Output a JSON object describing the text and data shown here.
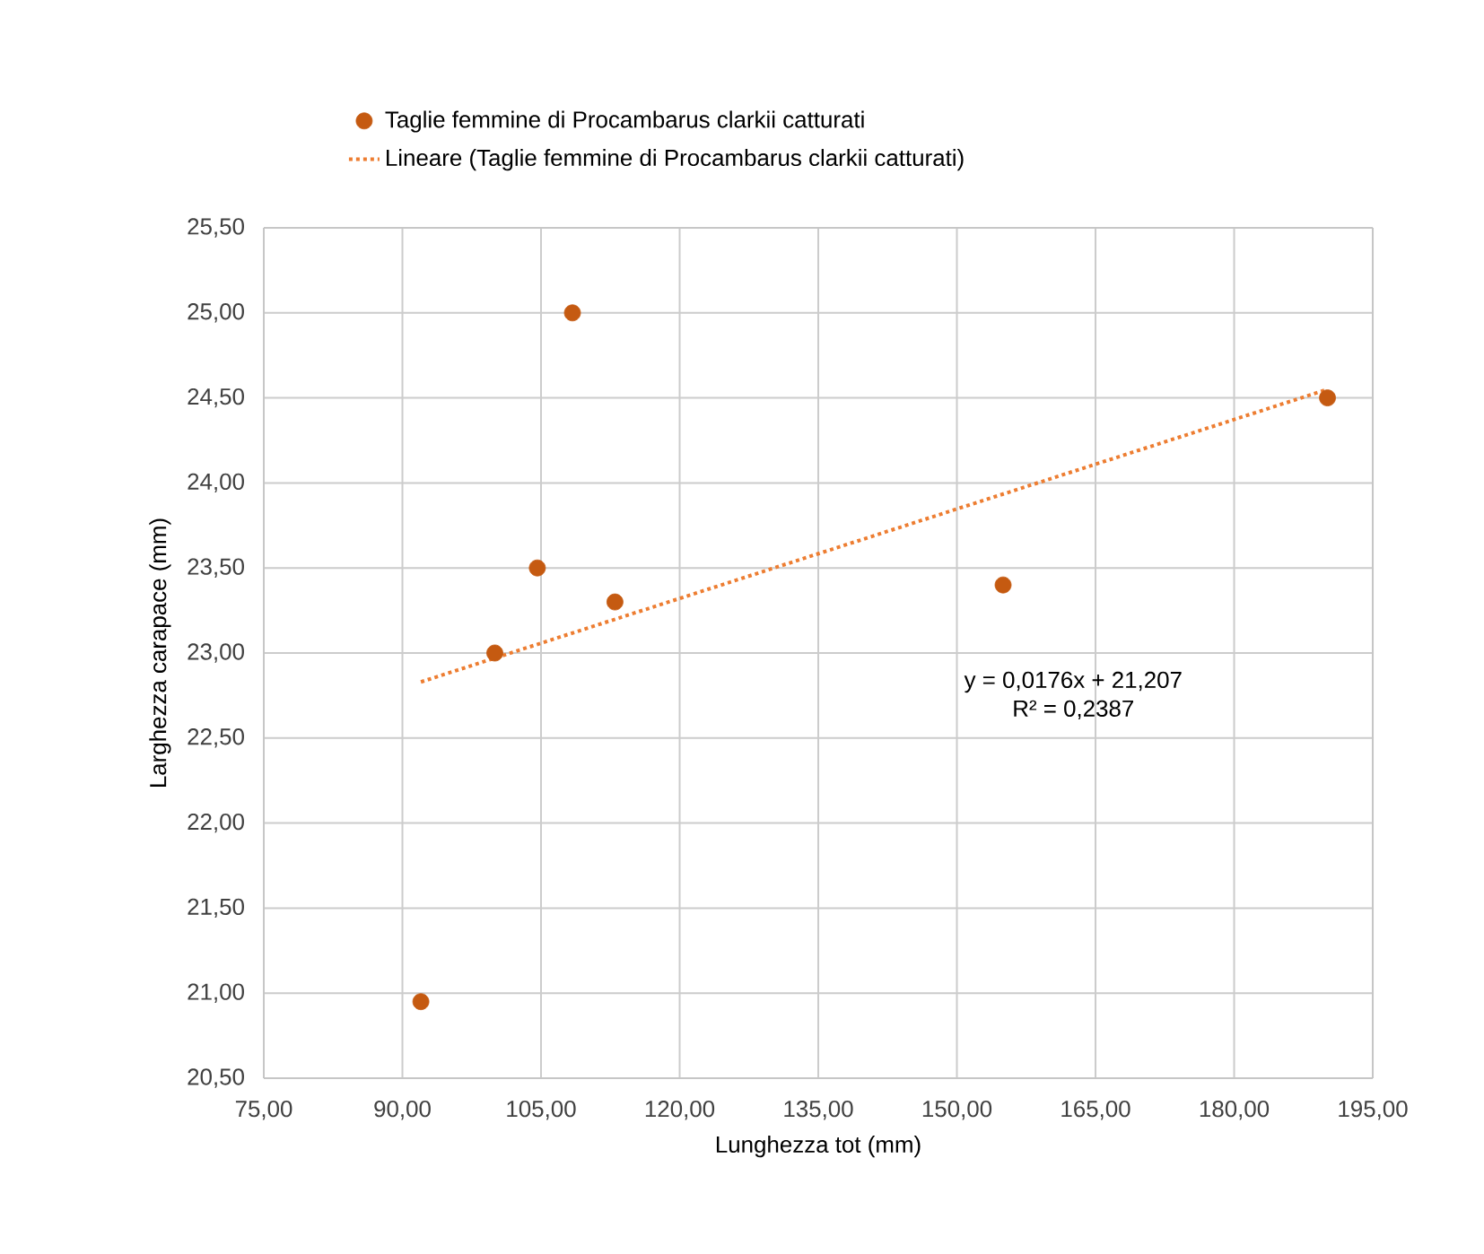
{
  "chart_data": {
    "type": "scatter",
    "xlabel": "Lunghezza tot (mm)",
    "ylabel": "Larghezza carapace (mm)",
    "series": [
      {
        "name": "Taglie femmine di Procambarus clarkii catturati",
        "color": "#c55a11",
        "marker": "circle",
        "x": [
          92,
          100,
          104.6,
          108.4,
          113,
          155,
          190.1
        ],
        "values": [
          20.95,
          23.0,
          23.5,
          25.0,
          23.3,
          23.4,
          24.5
        ]
      },
      {
        "name": "Lineare (Taglie femmine di Procambarus clarkii catturati)",
        "type": "line",
        "color": "#ed7d31",
        "line_style": "dotted",
        "marker": "none",
        "x": [
          92,
          190.1
        ],
        "values": [
          22.83,
          24.55
        ]
      }
    ],
    "annotations": [
      "y = 0,0176x + 21,207",
      "R² = 0,2387"
    ],
    "xlim": [
      75,
      195
    ],
    "ylim": [
      20.5,
      25.5
    ],
    "xticks": [
      {
        "value": 75,
        "label": "75,00"
      },
      {
        "value": 90,
        "label": "90,00"
      },
      {
        "value": 105,
        "label": "105,00"
      },
      {
        "value": 120,
        "label": "120,00"
      },
      {
        "value": 135,
        "label": "135,00"
      },
      {
        "value": 150,
        "label": "150,00"
      },
      {
        "value": 165,
        "label": "165,00"
      },
      {
        "value": 180,
        "label": "180,00"
      },
      {
        "value": 195,
        "label": "195,00"
      }
    ],
    "yticks": [
      {
        "value": 20.5,
        "label": "20,50"
      },
      {
        "value": 21,
        "label": "21,00"
      },
      {
        "value": 21.5,
        "label": "21,50"
      },
      {
        "value": 22,
        "label": "22,00"
      },
      {
        "value": 22.5,
        "label": "22,50"
      },
      {
        "value": 23,
        "label": "23,00"
      },
      {
        "value": 23.5,
        "label": "23,50"
      },
      {
        "value": 24,
        "label": "24,00"
      },
      {
        "value": 24.5,
        "label": "24,50"
      },
      {
        "value": 25,
        "label": "25,00"
      },
      {
        "value": 25.5,
        "label": "25,50"
      }
    ],
    "grid": true,
    "legend": "top"
  }
}
